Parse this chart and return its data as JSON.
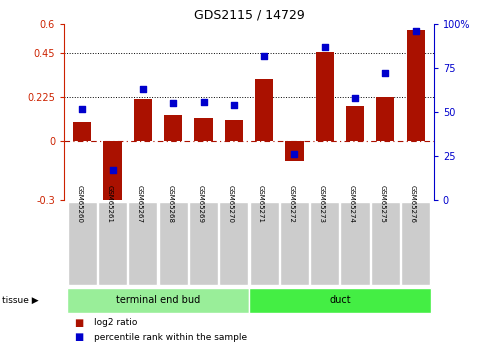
{
  "title": "GDS2115 / 14729",
  "categories": [
    "GSM65260",
    "GSM65261",
    "GSM65267",
    "GSM65268",
    "GSM65269",
    "GSM65270",
    "GSM65271",
    "GSM65272",
    "GSM65273",
    "GSM65274",
    "GSM65275",
    "GSM65276"
  ],
  "log2_ratio": [
    0.1,
    -0.35,
    0.215,
    0.135,
    0.12,
    0.11,
    0.32,
    -0.1,
    0.46,
    0.18,
    0.225,
    0.57
  ],
  "percentile_rank": [
    52,
    17,
    63,
    55,
    56,
    54,
    82,
    26,
    87,
    58,
    72,
    96
  ],
  "bar_color": "#aa1100",
  "dot_color": "#0000cc",
  "ylim_left": [
    -0.3,
    0.6
  ],
  "ylim_right": [
    0,
    100
  ],
  "hlines": [
    0.225,
    0.45
  ],
  "groups": [
    {
      "label": "terminal end bud",
      "start": 0,
      "end": 6,
      "color": "#99ee99"
    },
    {
      "label": "duct",
      "start": 6,
      "end": 12,
      "color": "#44ee44"
    }
  ],
  "tissue_label": "tissue",
  "legend_red": "log2 ratio",
  "legend_blue": "percentile rank within the sample",
  "left_axis_color": "#cc2200",
  "right_axis_color": "#0000cc",
  "tick_bg_color": "#cccccc",
  "background_color": "#ffffff",
  "left_yticks": [
    -0.3,
    0,
    0.225,
    0.45,
    0.6
  ],
  "left_yticklabels": [
    "-0.3",
    "0",
    "0.225",
    "0.45",
    "0.6"
  ],
  "right_yticks": [
    0,
    25,
    50,
    75,
    100
  ],
  "right_yticklabels": [
    "0",
    "25",
    "50",
    "75",
    "100%"
  ]
}
